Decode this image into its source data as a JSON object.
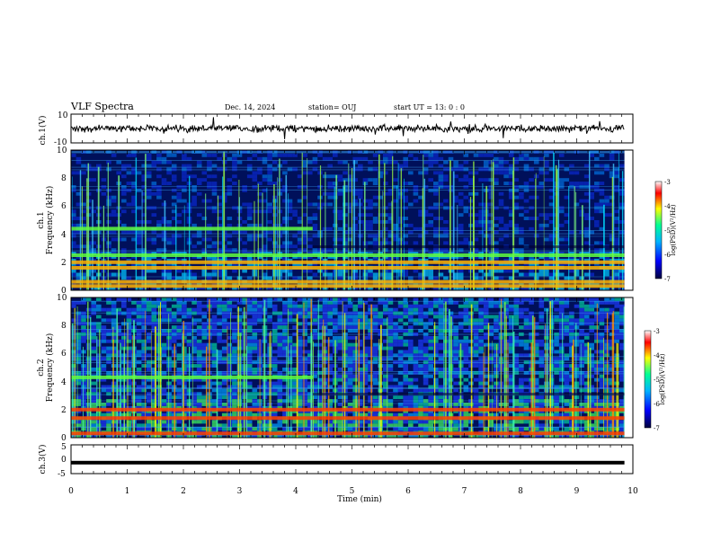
{
  "header": {
    "title": "VLF Spectra",
    "date": "Dec. 14, 2024",
    "station": "station= OUJ",
    "start": "start  UT =   13: 0  : 0"
  },
  "chart_data": [
    {
      "type": "line",
      "name_label": "ch.1(V)",
      "ylabel": "ch.1(V)",
      "ylim": [
        -10,
        10
      ],
      "yticks": [
        "10",
        "-10"
      ],
      "xlim": [
        0,
        10
      ],
      "description_values": {
        "baseline": 0,
        "typical_amplitude": 2
      }
    },
    {
      "type": "heatmap",
      "ylabel_channel": "ch.1",
      "ylabel": "Frequency (kHz)",
      "ylim": [
        0,
        10
      ],
      "yticks": [
        "0",
        "2",
        "4",
        "6",
        "8",
        "10"
      ],
      "xlim": [
        0,
        10
      ],
      "colorbar": {
        "label": "log(PSD)(V²/Hz)",
        "range": [
          -7,
          -3
        ],
        "ticks": [
          "-3",
          "-4",
          "-5",
          "-6",
          "-7"
        ]
      },
      "bands_khz": [
        0.3,
        0.6,
        1.6,
        2.0,
        2.5,
        4.4
      ]
    },
    {
      "type": "heatmap",
      "ylabel_channel": "ch.2",
      "ylabel": "Frequency (kHz)",
      "ylim": [
        0,
        10
      ],
      "yticks": [
        "0",
        "2",
        "4",
        "6",
        "8",
        "10"
      ],
      "xlim": [
        0,
        10
      ],
      "colorbar": {
        "label": "log(PSD)(V²/Hz)",
        "range": [
          -7,
          -3
        ],
        "ticks": [
          "-3",
          "-4",
          "-5",
          "-6",
          "-7"
        ]
      },
      "bands_khz": [
        0.3,
        1.4,
        2.0,
        4.3
      ]
    },
    {
      "type": "line",
      "ylabel": "ch.3(V)",
      "ylim": [
        -5,
        5
      ],
      "yticks": [
        "5",
        "0",
        "-5"
      ],
      "xlim": [
        0,
        10
      ],
      "constant_value": -1.2
    }
  ],
  "xaxis": {
    "label": "Time  (min)",
    "ticks": [
      "0",
      "1",
      "2",
      "3",
      "4",
      "5",
      "6",
      "7",
      "8",
      "9",
      "10"
    ],
    "data_end_min": 9.85
  },
  "colors": {
    "background": "#00105a",
    "cb_stops": [
      "#00003c",
      "#0000ff",
      "#00b4ff",
      "#00ff96",
      "#ffff00",
      "#ff0000",
      "#ffffff"
    ]
  }
}
